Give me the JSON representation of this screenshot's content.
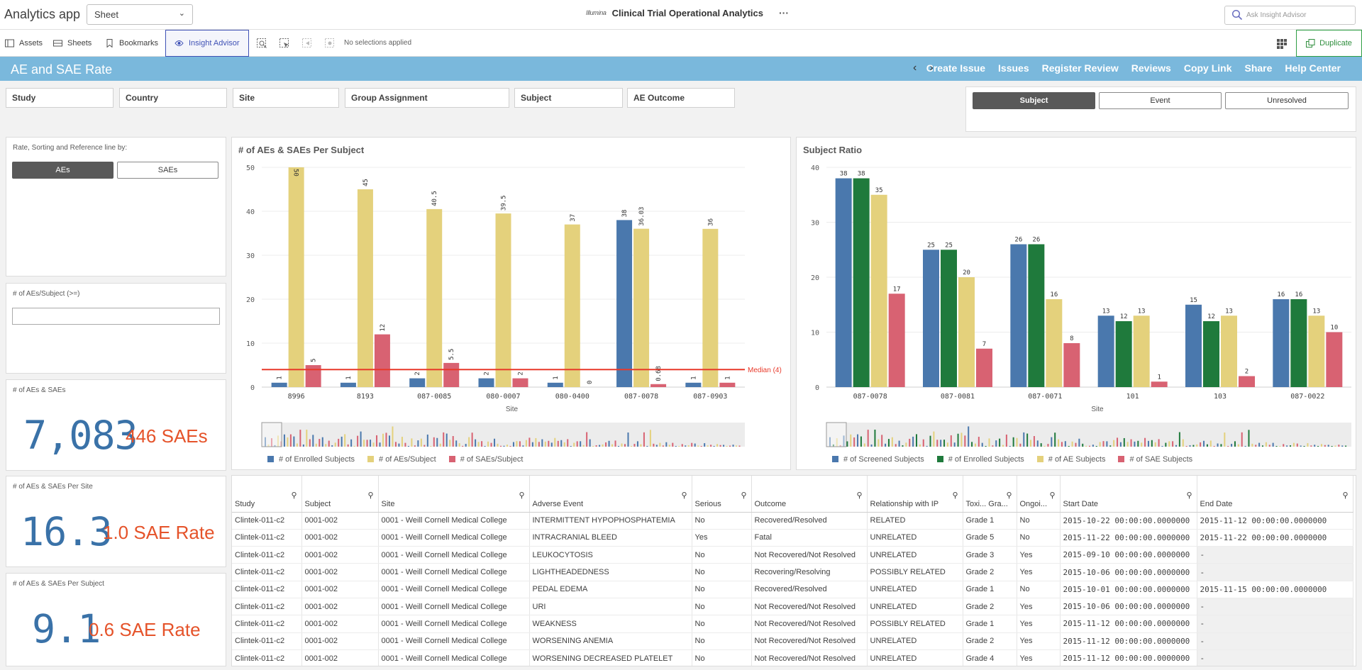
{
  "app": {
    "name": "Analytics app",
    "sheet_select": "Sheet",
    "logo_text": "Illumina",
    "title": "Clinical Trial Operational Analytics",
    "more": "···",
    "ask_placeholder": "Ask Insight Advisor"
  },
  "toolbar": {
    "assets": "Assets",
    "sheets": "Sheets",
    "bookmarks": "Bookmarks",
    "insight_advisor": "Insight Advisor",
    "no_selections": "No selections applied",
    "duplicate": "Duplicate"
  },
  "sheet": {
    "title": "AE and SAE Rate",
    "prev": "‹",
    "next": "›",
    "links": [
      "Create Issue",
      "Issues",
      "Register Review",
      "Reviews",
      "Copy Link",
      "Share",
      "Help Center"
    ]
  },
  "filters": [
    "Study",
    "Country",
    "Site",
    "Group Assignment",
    "Subject",
    "AE Outcome"
  ],
  "segments": {
    "items": [
      "Subject",
      "Event",
      "Unresolved"
    ],
    "active": 0
  },
  "rate_panel": {
    "title": "Rate, Sorting and Reference line by:",
    "options": [
      "AEs",
      "SAEs"
    ],
    "active": 0
  },
  "threshold_panel": {
    "title": "# of AEs/Subject (>=)",
    "value": ""
  },
  "kpi_total": {
    "title": "# of AEs & SAEs",
    "main": "7,083",
    "sub": "446 SAEs"
  },
  "kpi_site": {
    "title": "# of AEs & SAEs Per Site",
    "main": "16.3",
    "sub": "1.0 SAE Rate"
  },
  "kpi_subject": {
    "title": "# of AEs & SAEs Per Subject",
    "main": "9.1",
    "sub": "0.6 SAE Rate"
  },
  "chart_data": [
    {
      "type": "bar",
      "title": "# of AEs & SAEs Per Subject",
      "xlabel": "Site",
      "ylabel": "",
      "ylim": [
        0,
        50
      ],
      "yticks": [
        0,
        10,
        20,
        30,
        40,
        50
      ],
      "categories": [
        "8996",
        "8193",
        "087-0085",
        "080-0007",
        "080-0400",
        "087-0078",
        "087-0903"
      ],
      "series": [
        {
          "name": "# of Enrolled Subjects",
          "color": "#4a78ad",
          "values": [
            1,
            1,
            2,
            2,
            1,
            38,
            1
          ],
          "labels": [
            "1",
            "1",
            "2",
            "2",
            "1",
            "38",
            "1"
          ]
        },
        {
          "name": "# of AEs/Subject",
          "color": "#e4d17c",
          "values": [
            50,
            45,
            40.5,
            39.5,
            37,
            36.03,
            36
          ],
          "labels": [
            "50",
            "45",
            "40.5",
            "39.5",
            "37",
            "36.03",
            "36"
          ]
        },
        {
          "name": "# of SAEs/Subject",
          "color": "#d86272",
          "values": [
            5,
            12,
            5.5,
            2,
            0,
            0.68,
            1
          ],
          "labels": [
            "5",
            "12",
            "5.5",
            "2",
            "0",
            "0.68",
            "1"
          ]
        }
      ],
      "reference_line": {
        "value": 4,
        "label": "Median (4)",
        "color": "#e8392a"
      }
    },
    {
      "type": "bar",
      "title": "Subject Ratio",
      "xlabel": "Site",
      "ylabel": "",
      "ylim": [
        0,
        40
      ],
      "yticks": [
        0,
        10,
        20,
        30,
        40
      ],
      "categories": [
        "087-0078",
        "087-0081",
        "087-0071",
        "101",
        "103",
        "087-0022"
      ],
      "series": [
        {
          "name": "# of Screened Subjects",
          "color": "#4a78ad",
          "values": [
            38,
            25,
            26,
            13,
            15,
            16
          ]
        },
        {
          "name": "# of Enrolled Subjects",
          "color": "#1f7a3c",
          "values": [
            38,
            25,
            26,
            12,
            12,
            16
          ]
        },
        {
          "name": "# of AE Subjects",
          "color": "#e4d17c",
          "values": [
            35,
            20,
            16,
            13,
            13,
            13
          ]
        },
        {
          "name": "# of SAE Subjects",
          "color": "#d86272",
          "values": [
            17,
            7,
            8,
            1,
            2,
            10
          ]
        }
      ]
    }
  ],
  "table": {
    "columns": [
      "Study",
      "Subject",
      "Site",
      "Adverse Event",
      "Serious",
      "Outcome",
      "Relationship with IP",
      "Toxi... Gra...",
      "Ongoi...",
      "Start Date",
      "End Date"
    ],
    "rows": [
      [
        "Clintek-011-c2",
        "0001-002",
        "0001 - Weill Cornell Medical College",
        "INTERMITTENT HYPOPHOSPHATEMIA",
        "No",
        "Recovered/Resolved",
        "RELATED",
        "Grade 1",
        "No",
        "2015-10-22 00:00:00.0000000",
        "2015-11-12 00:00:00.0000000"
      ],
      [
        "Clintek-011-c2",
        "0001-002",
        "0001 - Weill Cornell Medical College",
        "INTRACRANIAL BLEED",
        "Yes",
        "Fatal",
        "UNRELATED",
        "Grade 5",
        "No",
        "2015-11-22 00:00:00.0000000",
        "2015-11-22 00:00:00.0000000"
      ],
      [
        "Clintek-011-c2",
        "0001-002",
        "0001 - Weill Cornell Medical College",
        "LEUKOCYTOSIS",
        "No",
        "Not Recovered/Not Resolved",
        "UNRELATED",
        "Grade 3",
        "Yes",
        "2015-09-10 00:00:00.0000000",
        "-"
      ],
      [
        "Clintek-011-c2",
        "0001-002",
        "0001 - Weill Cornell Medical College",
        "LIGHTHEADEDNESS",
        "No",
        "Recovering/Resolving",
        "POSSIBLY RELATED",
        "Grade 2",
        "Yes",
        "2015-10-06 00:00:00.0000000",
        "-"
      ],
      [
        "Clintek-011-c2",
        "0001-002",
        "0001 - Weill Cornell Medical College",
        "PEDAL EDEMA",
        "No",
        "Recovered/Resolved",
        "UNRELATED",
        "Grade 1",
        "No",
        "2015-10-01 00:00:00.0000000",
        "2015-11-15 00:00:00.0000000"
      ],
      [
        "Clintek-011-c2",
        "0001-002",
        "0001 - Weill Cornell Medical College",
        "URI",
        "No",
        "Not Recovered/Not Resolved",
        "UNRELATED",
        "Grade 2",
        "Yes",
        "2015-10-06 00:00:00.0000000",
        "-"
      ],
      [
        "Clintek-011-c2",
        "0001-002",
        "0001 - Weill Cornell Medical College",
        "WEAKNESS",
        "No",
        "Not Recovered/Not Resolved",
        "POSSIBLY RELATED",
        "Grade 1",
        "Yes",
        "2015-11-12 00:00:00.0000000",
        "-"
      ],
      [
        "Clintek-011-c2",
        "0001-002",
        "0001 - Weill Cornell Medical College",
        "WORSENING ANEMIA",
        "No",
        "Not Recovered/Not Resolved",
        "UNRELATED",
        "Grade 2",
        "Yes",
        "2015-11-12 00:00:00.0000000",
        "-"
      ],
      [
        "Clintek-011-c2",
        "0001-002",
        "0001 - Weill Cornell Medical College",
        "WORSENING DECREASED PLATELET",
        "No",
        "Not Recovered/Not Resolved",
        "UNRELATED",
        "Grade 4",
        "Yes",
        "2015-11-12 00:00:00.0000000",
        "-"
      ]
    ]
  }
}
